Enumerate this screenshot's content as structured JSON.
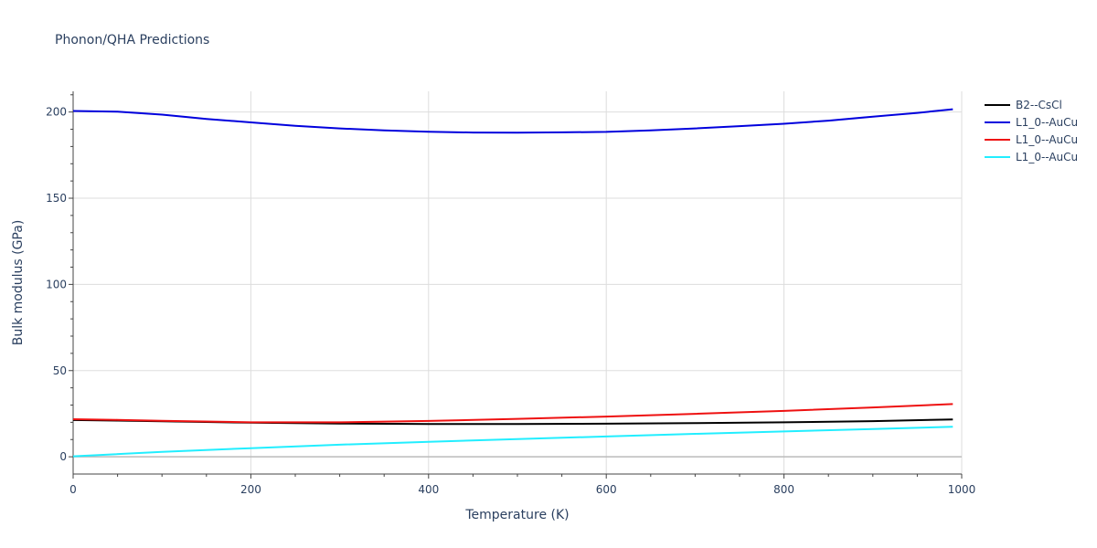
{
  "chart_data": {
    "type": "line",
    "title": "Phonon/QHA Predictions",
    "xlabel": "Temperature (K)",
    "ylabel": "Bulk modulus (GPa)",
    "xlim": [
      0,
      1000
    ],
    "ylim": [
      -10,
      212
    ],
    "xticks": [
      0,
      200,
      400,
      600,
      800,
      1000
    ],
    "yticks": [
      0,
      50,
      100,
      150,
      200
    ],
    "grid": true,
    "legend_position": "top-right",
    "series": [
      {
        "name": "B2--CsCl",
        "color": "#000000",
        "x": [
          0,
          50,
          100,
          200,
          300,
          400,
          500,
          600,
          700,
          800,
          900,
          990
        ],
        "y": [
          21.3,
          21.0,
          20.6,
          19.8,
          19.3,
          19.0,
          19.0,
          19.2,
          19.5,
          20.0,
          20.7,
          21.7
        ]
      },
      {
        "name": "L1_0--AuCu",
        "color": "#0000dd",
        "x": [
          0,
          50,
          100,
          150,
          200,
          250,
          300,
          350,
          400,
          450,
          500,
          550,
          600,
          650,
          700,
          750,
          800,
          850,
          900,
          950,
          990
        ],
        "y": [
          200.6,
          200.2,
          198.5,
          196.0,
          194.0,
          192.0,
          190.5,
          189.3,
          188.6,
          188.1,
          188.0,
          188.2,
          188.5,
          189.3,
          190.5,
          191.8,
          193.2,
          195.0,
          197.3,
          199.5,
          201.6
        ]
      },
      {
        "name": "L1_0--AuCu",
        "color": "#ee1111",
        "x": [
          0,
          50,
          100,
          200,
          300,
          400,
          500,
          600,
          700,
          800,
          900,
          990
        ],
        "y": [
          21.8,
          21.4,
          20.9,
          20.0,
          20.0,
          20.8,
          22.0,
          23.3,
          24.9,
          26.6,
          28.6,
          30.6
        ]
      },
      {
        "name": "L1_0--AuCu",
        "color": "#22eeff",
        "x": [
          0,
          100,
          200,
          300,
          400,
          500,
          600,
          700,
          800,
          900,
          990
        ],
        "y": [
          0.3,
          2.8,
          5.0,
          7.0,
          8.7,
          10.3,
          11.8,
          13.3,
          14.7,
          16.1,
          17.4
        ]
      }
    ]
  }
}
